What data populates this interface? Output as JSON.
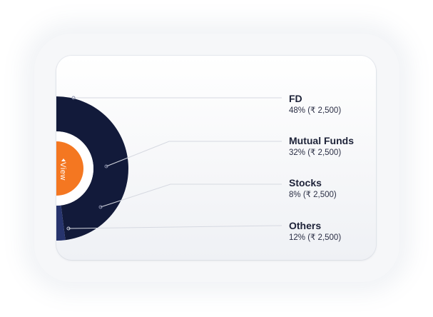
{
  "donut": {
    "center_button_label": "View",
    "segments": [
      {
        "name": "FD",
        "fraction": 0.48,
        "color": "#121a3a"
      },
      {
        "name": "Mutual Funds",
        "fraction": 0.32,
        "color": "#27346d"
      },
      {
        "name": "Stocks",
        "fraction": 0.08,
        "color": "#656c94"
      },
      {
        "name": "Others",
        "fraction": 0.12,
        "color": "#a4a9c4"
      }
    ],
    "center_button_color": "#f47721",
    "leader_line_color": "#d6d9e1"
  },
  "legend": [
    {
      "name": "FD",
      "value": "48% (₹ 2,500)"
    },
    {
      "name": "Mutual Funds",
      "value": "32% (₹ 2,500)"
    },
    {
      "name": "Stocks",
      "value": "8% (₹ 2,500)"
    },
    {
      "name": "Others",
      "value": "12% (₹ 2,500)"
    }
  ]
}
